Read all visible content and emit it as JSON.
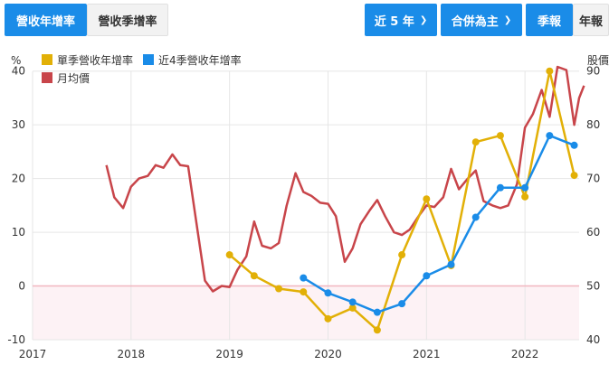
{
  "toolbar": {
    "tab_annual_yoy": "營收年增率",
    "tab_quarter_yoy": "營收季增率",
    "range_select": "近 5 年",
    "basis_select": "合併為主",
    "btn_quarterly": "季報",
    "btn_annual": "年報"
  },
  "colors": {
    "quarter_yoy": "#e2b007",
    "rolling_yoy": "#1a8ce8",
    "monthly_price": "#c8454a",
    "zero_line": "#f1b6bf",
    "negative_fill": "#fdf2f5",
    "grid": "#e6e6e6"
  },
  "chart_data": {
    "type": "line",
    "x_axis": {
      "ticks": [
        "2017",
        "2018",
        "2019",
        "2020",
        "2021",
        "2022"
      ],
      "range": [
        2017.0,
        2022.55
      ]
    },
    "y_left": {
      "label": "%",
      "ticks": [
        -10,
        0,
        10,
        20,
        30,
        40
      ],
      "range": [
        -10,
        45
      ]
    },
    "y_right": {
      "label": "股價",
      "ticks": [
        40,
        50,
        60,
        70,
        80,
        90
      ],
      "range": [
        40,
        95
      ]
    },
    "legend_position": "top-left",
    "series": [
      {
        "name": "單季營收年增率",
        "axis": "left",
        "markers": true,
        "color_key": "quarter_yoy",
        "points": [
          [
            2019.0,
            5.8
          ],
          [
            2019.25,
            1.9
          ],
          [
            2019.5,
            -0.5
          ],
          [
            2019.75,
            -1.1
          ],
          [
            2020.0,
            -6.1
          ],
          [
            2020.25,
            -4.1
          ],
          [
            2020.5,
            -8.2
          ],
          [
            2020.75,
            5.8
          ],
          [
            2021.0,
            16.2
          ],
          [
            2021.25,
            3.8
          ],
          [
            2021.5,
            26.8
          ],
          [
            2021.75,
            28.0
          ],
          [
            2022.0,
            16.6
          ],
          [
            2022.25,
            40.0
          ],
          [
            2022.5,
            20.6
          ]
        ]
      },
      {
        "name": "近4季營收年增率",
        "axis": "left",
        "markers": true,
        "color_key": "rolling_yoy",
        "points": [
          [
            2019.75,
            1.5
          ],
          [
            2020.0,
            -1.3
          ],
          [
            2020.25,
            -3.0
          ],
          [
            2020.5,
            -4.9
          ],
          [
            2020.75,
            -3.3
          ],
          [
            2021.0,
            1.9
          ],
          [
            2021.25,
            4.0
          ],
          [
            2021.5,
            12.8
          ],
          [
            2021.75,
            18.3
          ],
          [
            2022.0,
            18.3
          ],
          [
            2022.25,
            28.0
          ],
          [
            2022.5,
            26.2
          ]
        ]
      },
      {
        "name": "月均價",
        "axis": "right",
        "markers": false,
        "color_key": "monthly_price",
        "points": [
          [
            2017.75,
            72.5
          ],
          [
            2017.83,
            66.5
          ],
          [
            2017.92,
            64.5
          ],
          [
            2018.0,
            68.5
          ],
          [
            2018.08,
            70.0
          ],
          [
            2018.17,
            70.5
          ],
          [
            2018.25,
            72.5
          ],
          [
            2018.33,
            72.0
          ],
          [
            2018.42,
            74.5
          ],
          [
            2018.5,
            72.5
          ],
          [
            2018.58,
            72.3
          ],
          [
            2018.67,
            61.0
          ],
          [
            2018.75,
            51.0
          ],
          [
            2018.83,
            49.0
          ],
          [
            2018.92,
            50.0
          ],
          [
            2019.0,
            49.8
          ],
          [
            2019.08,
            53.0
          ],
          [
            2019.17,
            55.5
          ],
          [
            2019.25,
            62.0
          ],
          [
            2019.33,
            57.5
          ],
          [
            2019.42,
            57.0
          ],
          [
            2019.5,
            58.0
          ],
          [
            2019.58,
            65.0
          ],
          [
            2019.67,
            71.0
          ],
          [
            2019.75,
            67.5
          ],
          [
            2019.83,
            66.8
          ],
          [
            2019.92,
            65.5
          ],
          [
            2020.0,
            65.3
          ],
          [
            2020.08,
            63.0
          ],
          [
            2020.17,
            54.5
          ],
          [
            2020.25,
            57.0
          ],
          [
            2020.33,
            61.5
          ],
          [
            2020.42,
            64.0
          ],
          [
            2020.5,
            66.0
          ],
          [
            2020.58,
            63.0
          ],
          [
            2020.67,
            60.0
          ],
          [
            2020.75,
            59.5
          ],
          [
            2020.83,
            60.5
          ],
          [
            2020.92,
            63.0
          ],
          [
            2021.0,
            65.0
          ],
          [
            2021.08,
            64.7
          ],
          [
            2021.17,
            66.5
          ],
          [
            2021.25,
            71.8
          ],
          [
            2021.33,
            68.0
          ],
          [
            2021.42,
            70.0
          ],
          [
            2021.5,
            71.5
          ],
          [
            2021.58,
            65.8
          ],
          [
            2021.67,
            65.0
          ],
          [
            2021.75,
            64.5
          ],
          [
            2021.83,
            65.0
          ],
          [
            2021.92,
            69.0
          ],
          [
            2022.0,
            79.5
          ],
          [
            2022.08,
            82.0
          ],
          [
            2022.17,
            86.5
          ],
          [
            2022.25,
            81.5
          ],
          [
            2022.33,
            90.8
          ],
          [
            2022.42,
            90.2
          ],
          [
            2022.5,
            80.0
          ],
          [
            2022.55,
            85.0
          ],
          [
            2022.6,
            87.3
          ]
        ]
      }
    ]
  }
}
